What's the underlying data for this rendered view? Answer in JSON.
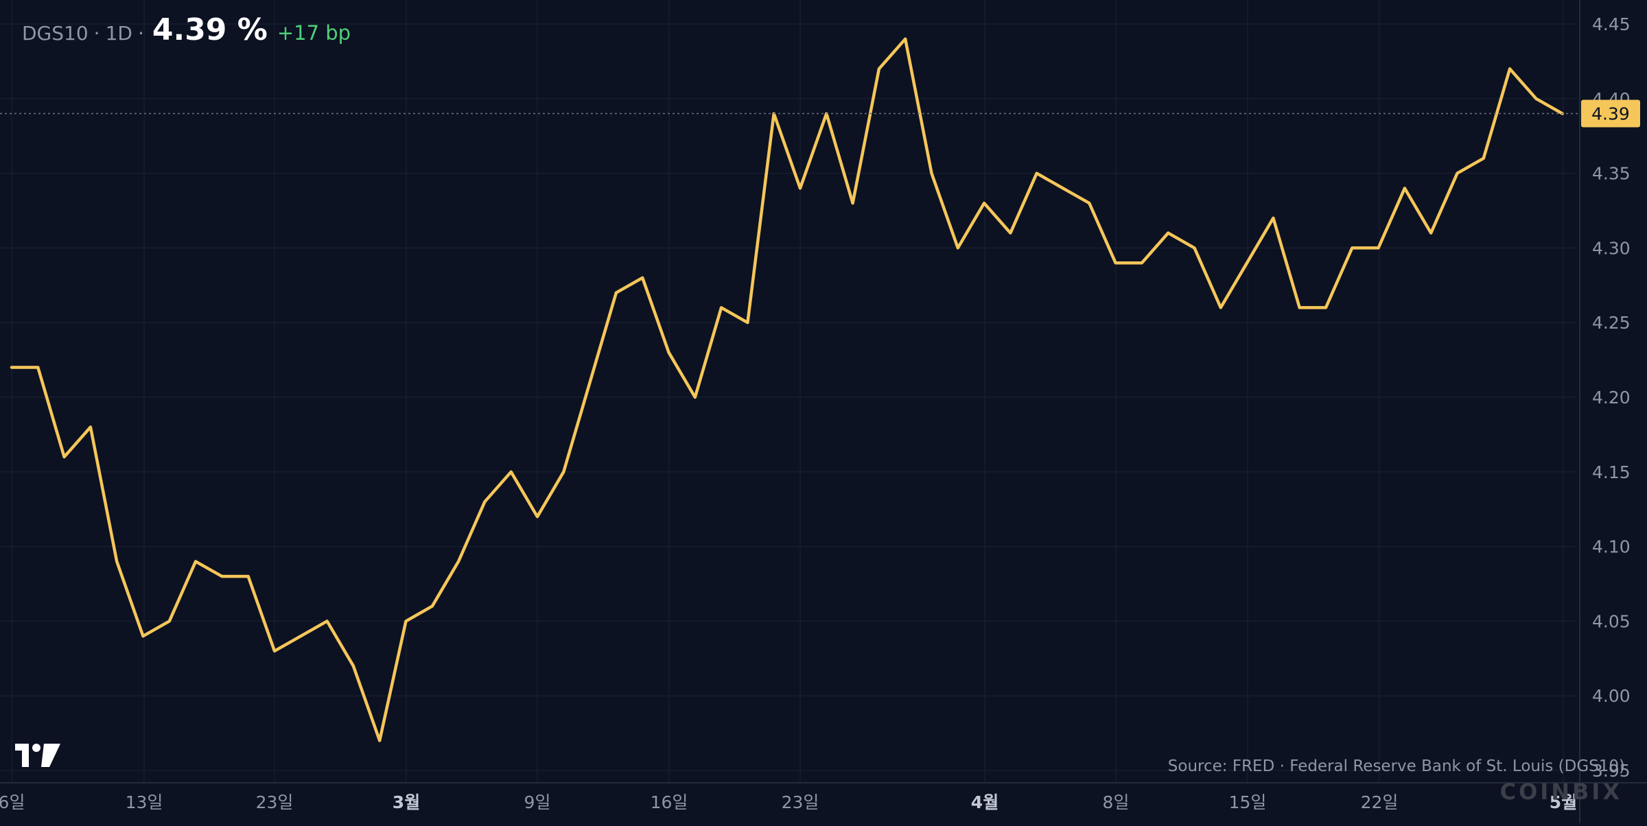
{
  "header": {
    "symbol": "DGS10",
    "separator": "·",
    "interval": "1D",
    "value": "4.39 %",
    "change": "+17 bp"
  },
  "source": "Source: FRED · Federal Reserve Bank of St. Louis (DGS10)",
  "watermark": "COINBIX",
  "logo_icon": "tradingview-logo-icon",
  "colors": {
    "background": "#0c1221",
    "line": "#f5c65a",
    "grid": "#1a2235",
    "axis_text": "#8e97a8",
    "positive_change": "#4ed17a",
    "price_label_bg": "#f5c65a",
    "price_label_text": "#0c1221"
  },
  "chart_data": {
    "type": "line",
    "title": "",
    "xlabel": "",
    "ylabel": "",
    "ylim": [
      3.95,
      4.45
    ],
    "y_ticks": [
      "3.95",
      "4.00",
      "4.05",
      "4.10",
      "4.15",
      "4.20",
      "4.25",
      "4.30",
      "4.35",
      "4.40",
      "4.45"
    ],
    "x_ticks": [
      {
        "label": "6일",
        "bold": false
      },
      {
        "label": "13일",
        "bold": false
      },
      {
        "label": "23일",
        "bold": false
      },
      {
        "label": "3월",
        "bold": true
      },
      {
        "label": "9일",
        "bold": false
      },
      {
        "label": "16일",
        "bold": false
      },
      {
        "label": "23일",
        "bold": false
      },
      {
        "label": "4월",
        "bold": true
      },
      {
        "label": "8일",
        "bold": false
      },
      {
        "label": "15일",
        "bold": false
      },
      {
        "label": "22일",
        "bold": false
      },
      {
        "label": "5월",
        "bold": true
      }
    ],
    "last_value_label": "4.39",
    "series": [
      {
        "values": [
          4.22,
          4.22,
          4.16,
          4.18,
          4.09,
          4.04,
          4.05,
          4.09,
          4.08,
          4.08,
          4.03,
          4.04,
          4.05,
          4.02,
          3.97,
          4.05,
          4.06,
          4.09,
          4.13,
          4.15,
          4.12,
          4.15,
          4.21,
          4.27,
          4.28,
          4.23,
          4.2,
          4.26,
          4.25,
          4.39,
          4.34,
          4.39,
          4.33,
          4.42,
          4.44,
          4.35,
          4.3,
          4.33,
          4.31,
          4.35,
          4.34,
          4.33,
          4.29,
          4.29,
          4.31,
          4.3,
          4.26,
          4.29,
          4.32,
          4.26,
          4.26,
          4.3,
          4.3,
          4.34,
          4.31,
          4.35,
          4.36,
          4.42,
          4.4,
          4.39
        ]
      }
    ]
  }
}
